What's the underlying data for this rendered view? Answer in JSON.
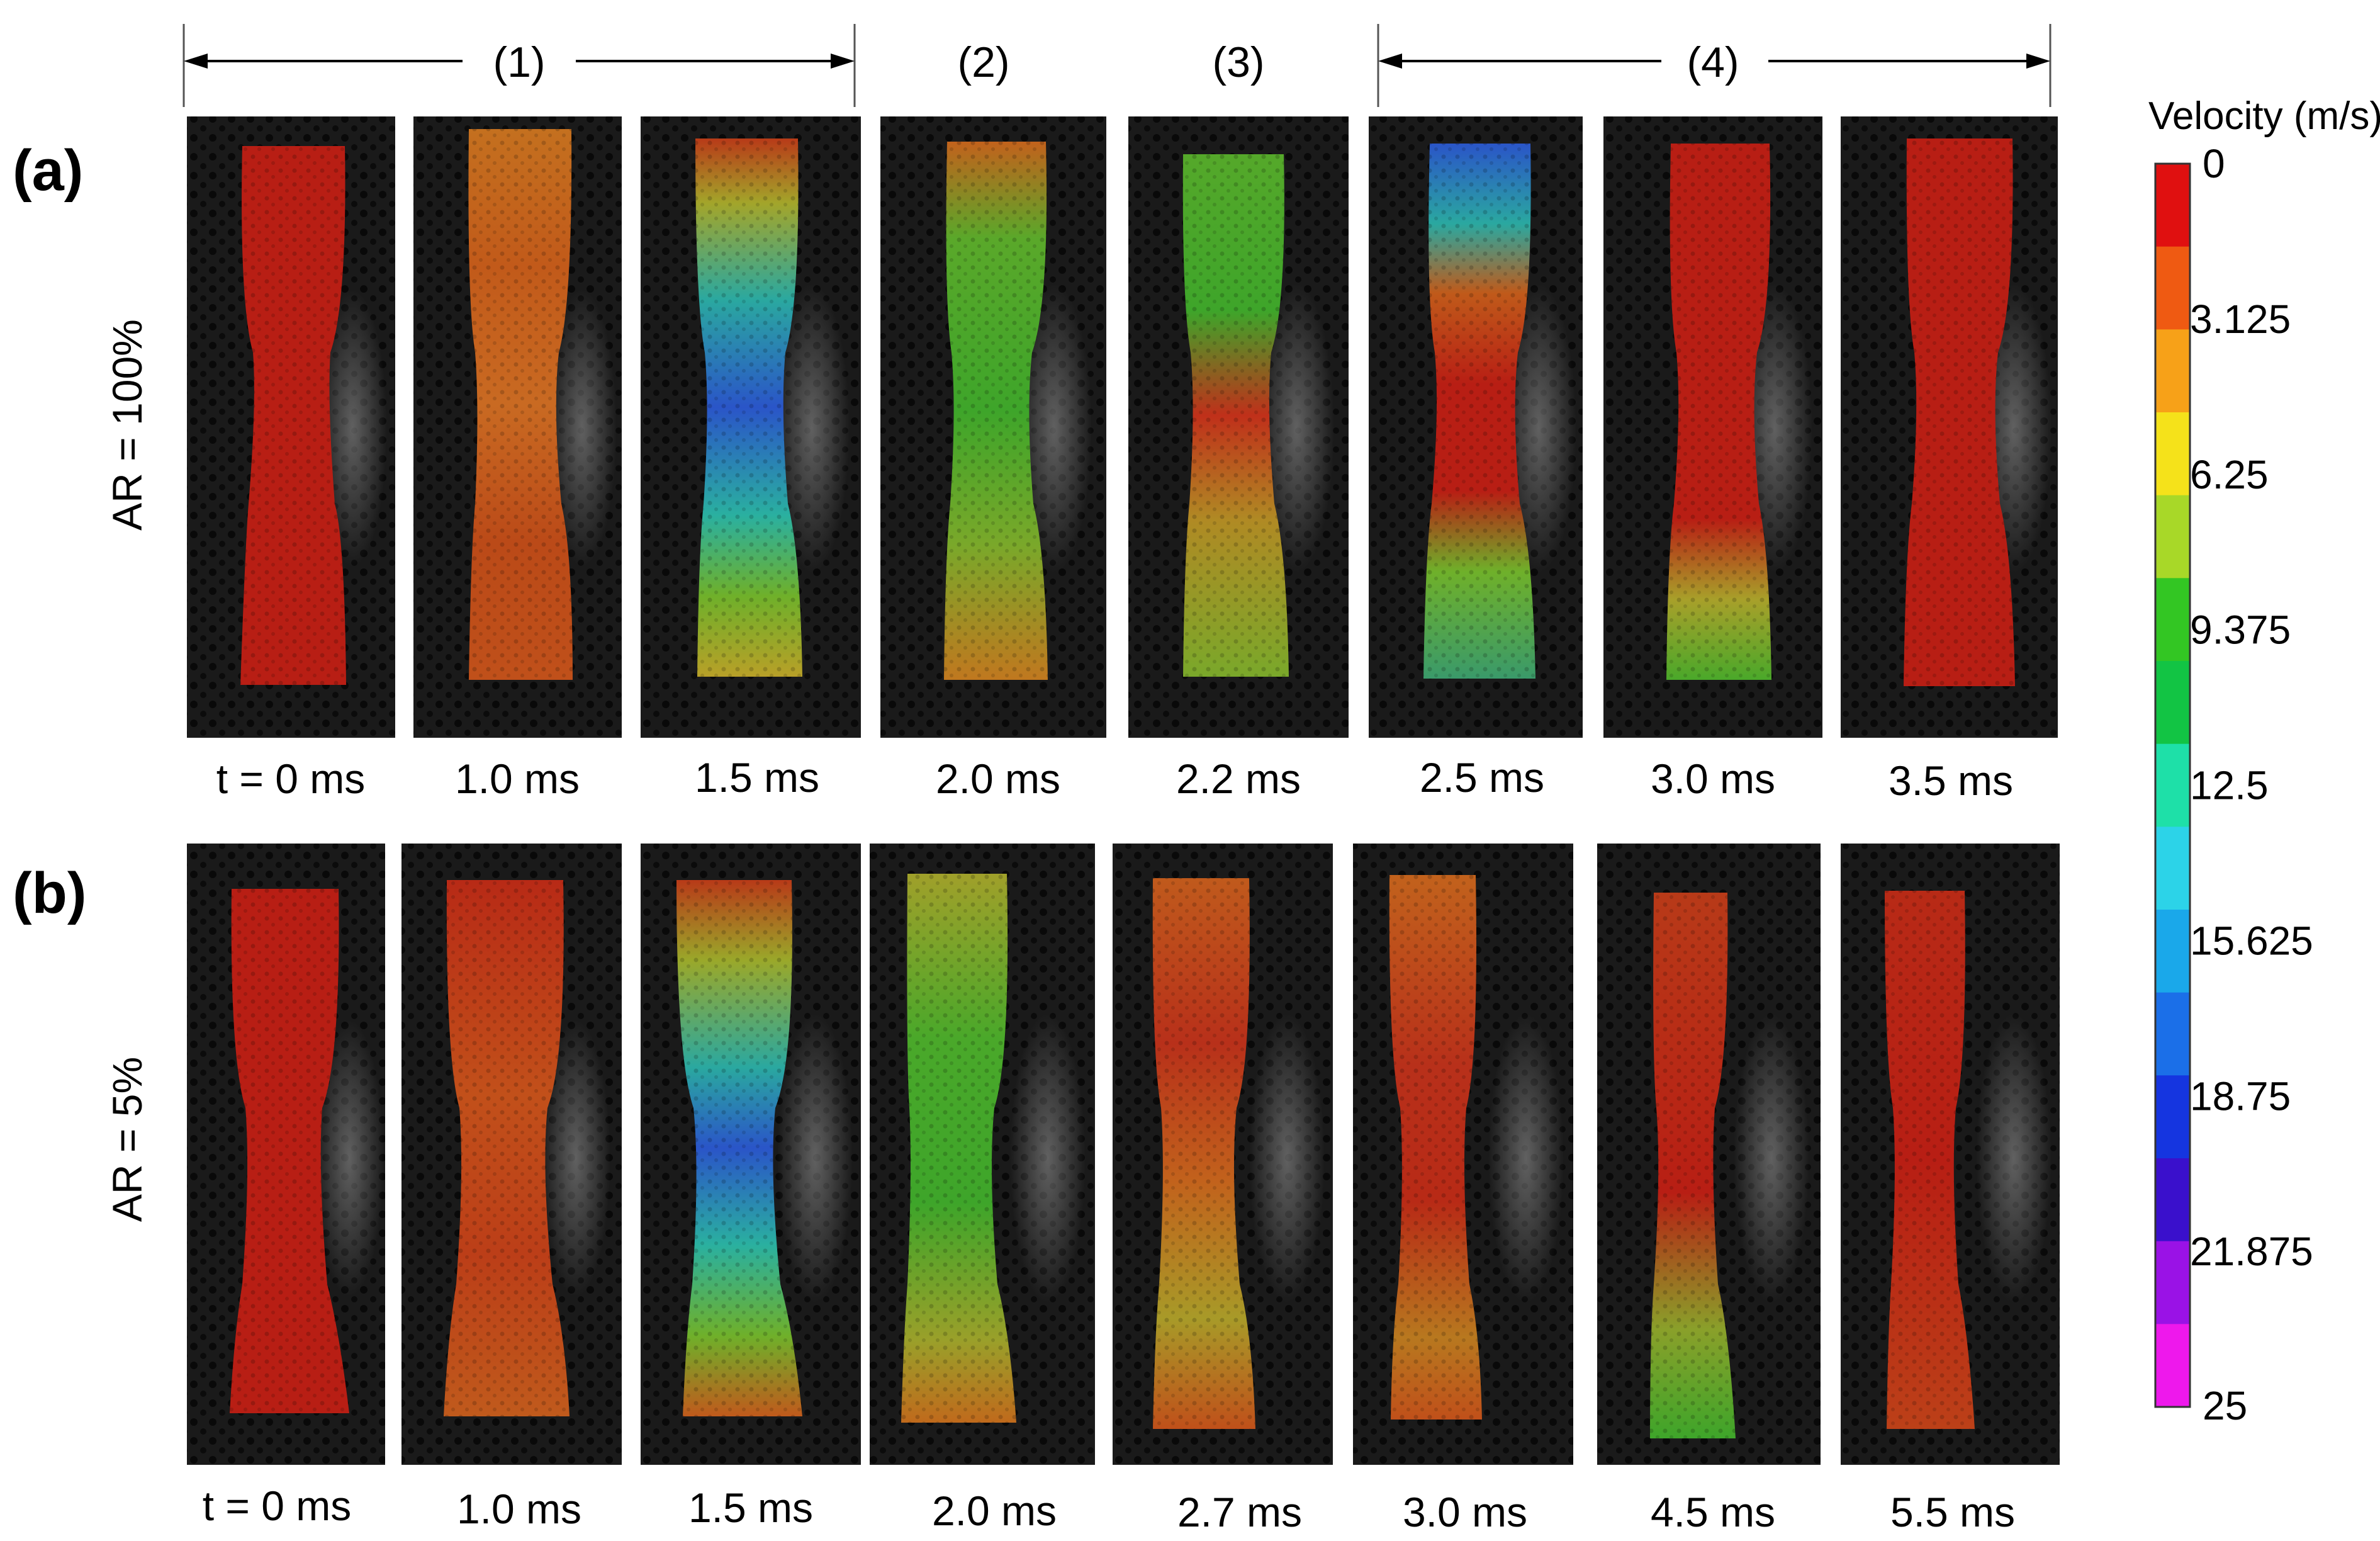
{
  "phases": {
    "p1": "(1)",
    "p2": "(2)",
    "p3": "(3)",
    "p4": "(4)"
  },
  "rows": [
    {
      "tag": "(a)",
      "side_label": "AR = 100%",
      "times": [
        "t = 0 ms",
        "1.0 ms",
        "1.5 ms",
        "2.0 ms",
        "2.2 ms",
        "2.5 ms",
        "3.0 ms",
        "3.5 ms"
      ]
    },
    {
      "tag": "(b)",
      "side_label": "AR = 5%",
      "times": [
        "t = 0 ms",
        "1.0 ms",
        "1.5 ms",
        "2.0 ms",
        "2.7 ms",
        "3.0 ms",
        "4.5 ms",
        "5.5 ms"
      ]
    }
  ],
  "colorbar": {
    "title": "Velocity (m/s)",
    "ticks": [
      "0",
      "3.125",
      "6.25",
      "9.375",
      "12.5",
      "15.625",
      "18.75",
      "21.875",
      "25"
    ],
    "colors": [
      "#e01010",
      "#ef5a12",
      "#f7a118",
      "#f5e21a",
      "#a8d828",
      "#33c623",
      "#12c444",
      "#1ee0a8",
      "#2cd3e8",
      "#1aa8ea",
      "#1b6fe8",
      "#1535e0",
      "#3a10cc",
      "#9a12e6",
      "#ee18ec"
    ]
  },
  "colors": {
    "panel_bg": "#1a1a1a",
    "red": "#b81e14",
    "green": "#3ea52a",
    "blue": "#2a55c8",
    "orange": "#c4701f"
  }
}
